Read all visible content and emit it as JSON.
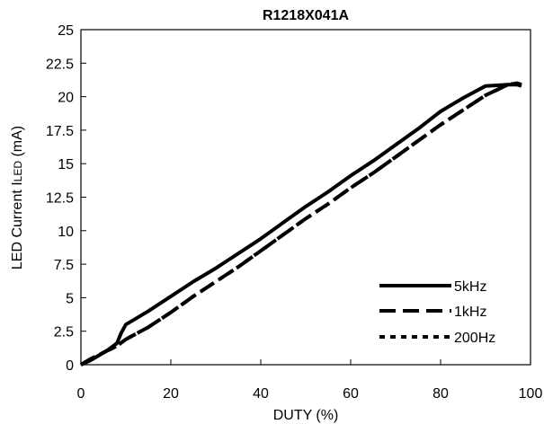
{
  "chart_data": {
    "type": "line",
    "title": "R1218X041A",
    "xlabel": "DUTY (%)",
    "ylabel_main": "LED Current I",
    "ylabel_sub": "LED",
    "ylabel_unit": " (mA)",
    "xlim": [
      0,
      100
    ],
    "ylim": [
      0,
      25
    ],
    "xticks": [
      "0",
      "20",
      "40",
      "60",
      "80",
      "100"
    ],
    "yticks": [
      "0",
      "2.5",
      "5",
      "7.5",
      "10",
      "12.5",
      "15",
      "17.5",
      "20",
      "22.5",
      "25"
    ],
    "grid": false,
    "legend_position": "bottom-right",
    "series": [
      {
        "name": "5kHz",
        "style": "solid",
        "x": [
          0,
          2,
          4,
          6,
          8,
          9,
          10,
          12,
          15,
          20,
          25,
          30,
          35,
          40,
          45,
          50,
          55,
          60,
          65,
          70,
          75,
          80,
          85,
          90,
          95,
          97,
          98
        ],
        "y": [
          0,
          0.3,
          0.7,
          1.1,
          1.6,
          2.4,
          3.0,
          3.4,
          4.0,
          5.1,
          6.2,
          7.2,
          8.3,
          9.4,
          10.6,
          11.8,
          12.9,
          14.1,
          15.2,
          16.4,
          17.6,
          18.9,
          19.9,
          20.8,
          20.9,
          20.9,
          20.8
        ]
      },
      {
        "name": "1kHz",
        "style": "dash",
        "x": [
          0,
          2,
          5,
          8,
          10,
          15,
          20,
          25,
          30,
          35,
          40,
          45,
          50,
          55,
          60,
          65,
          70,
          75,
          80,
          85,
          90,
          95,
          97,
          98
        ],
        "y": [
          0,
          0.4,
          0.9,
          1.4,
          1.9,
          2.8,
          3.9,
          5.1,
          6.2,
          7.3,
          8.5,
          9.7,
          10.9,
          12.0,
          13.2,
          14.3,
          15.5,
          16.7,
          17.9,
          19.0,
          20.1,
          20.9,
          21.0,
          20.9
        ]
      },
      {
        "name": "200Hz",
        "style": "dot",
        "x": [
          0,
          2,
          5,
          8,
          10,
          15,
          20,
          25,
          30,
          35,
          40,
          45,
          50,
          55,
          60,
          65,
          70,
          75,
          80,
          85,
          90,
          95,
          97,
          98
        ],
        "y": [
          0,
          0.4,
          0.9,
          1.4,
          1.9,
          2.8,
          3.9,
          5.1,
          6.2,
          7.3,
          8.5,
          9.7,
          10.9,
          12.0,
          13.2,
          14.3,
          15.5,
          16.7,
          17.9,
          19.0,
          20.1,
          20.9,
          21.0,
          20.9
        ]
      }
    ]
  }
}
